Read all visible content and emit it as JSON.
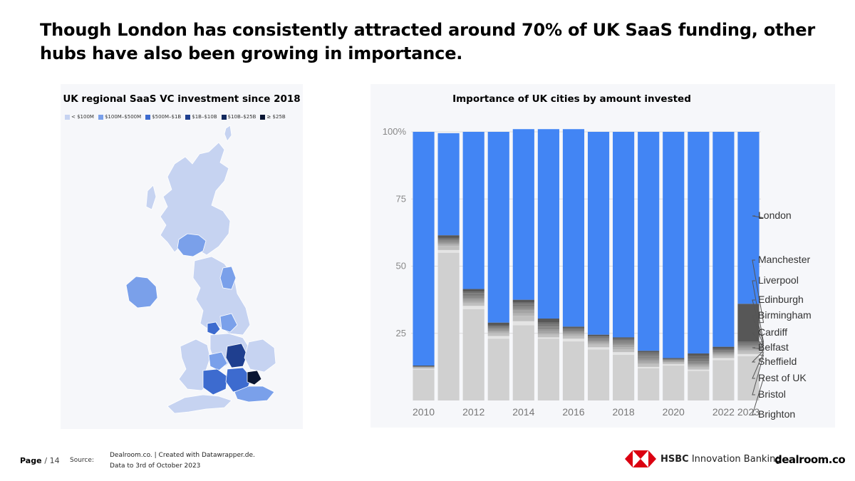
{
  "headline": "Though London has consistently attracted around 70% of UK SaaS funding, other hubs have also been growing in importance.",
  "map": {
    "title": "UK regional SaaS VC investment since 2018",
    "legend": [
      {
        "label": "< $100M",
        "color": "#c6d3f1"
      },
      {
        "label": "$100M–$500M",
        "color": "#7aa0ea"
      },
      {
        "label": "$500M–$1B",
        "color": "#3d6bcf"
      },
      {
        "label": "$1B–$10B",
        "color": "#1f3f8f"
      },
      {
        "label": "$10B–$25B",
        "color": "#132a5e"
      },
      {
        "label": "≥ $25B",
        "color": "#0a1633"
      }
    ]
  },
  "chart_data": {
    "type": "bar",
    "stacked": true,
    "title": "Importance of UK cities by amount invested",
    "x": [
      2010,
      2011,
      2012,
      2013,
      2014,
      2015,
      2016,
      2017,
      2018,
      2019,
      2020,
      2021,
      2022,
      2023
    ],
    "x_tick_labels": [
      "2010",
      "",
      "2012",
      "",
      "2014",
      "",
      "2016",
      "",
      "2018",
      "",
      "2020",
      "",
      "2022",
      "2023"
    ],
    "ylim": [
      0,
      100
    ],
    "y_ticks": [
      25,
      50,
      75,
      100
    ],
    "y_tick_labels": [
      "25",
      "50",
      "75",
      "100%"
    ],
    "series": [
      {
        "name": "Brighton",
        "color": "#d0d0d0",
        "values": [
          11.5,
          55,
          34,
          23,
          28,
          23,
          22,
          19,
          17,
          12,
          13,
          11,
          15,
          16.5
        ]
      },
      {
        "name": "Bristol",
        "color": "#e4e4e4",
        "values": [
          0.3,
          1,
          1.2,
          1,
          1.5,
          0.5,
          1,
          0.8,
          1,
          0.5,
          0.5,
          0.5,
          0.8,
          0.8
        ]
      },
      {
        "name": "Rest of UK",
        "color": "#c0c0c0",
        "values": [
          0.3,
          1.5,
          1,
          1,
          2,
          1,
          1,
          1,
          1,
          1,
          0.5,
          0.8,
          0.8,
          1
        ]
      },
      {
        "name": "Sheffield",
        "color": "#b2b2b2",
        "values": [
          0.1,
          0.5,
          0.5,
          0.5,
          1,
          0.5,
          0.5,
          0.5,
          0.8,
          0.5,
          0.3,
          0.5,
          0.5,
          0.5
        ]
      },
      {
        "name": "Belfast",
        "color": "#a4a4a4",
        "values": [
          0.1,
          0.5,
          0.8,
          0.5,
          1,
          0.8,
          0.5,
          0.5,
          0.7,
          0.8,
          0.3,
          0.5,
          0.4,
          0.6
        ]
      },
      {
        "name": "Cardiff",
        "color": "#969696",
        "values": [
          0.1,
          0.5,
          0.5,
          0.5,
          0.5,
          0.7,
          0.5,
          0.5,
          0.5,
          0.7,
          0.2,
          0.5,
          0.3,
          0.6
        ]
      },
      {
        "name": "Birmingham",
        "color": "#888888",
        "values": [
          0.1,
          0.5,
          1,
          0.5,
          1,
          1,
          0.5,
          0.7,
          0.8,
          1,
          0.3,
          0.7,
          0.5,
          0.7
        ]
      },
      {
        "name": "Edinburgh",
        "color": "#7a7a7a",
        "values": [
          0.1,
          0.5,
          1,
          0.5,
          1,
          1,
          0.5,
          0.7,
          0.7,
          1,
          0.2,
          1,
          0.5,
          0.8
        ]
      },
      {
        "name": "Liverpool",
        "color": "#6a6a6a",
        "values": [
          0.1,
          0.5,
          0.5,
          0.5,
          0.5,
          0.5,
          0.5,
          0.3,
          0.5,
          0.5,
          0.2,
          1,
          0.4,
          0.5
        ]
      },
      {
        "name": "Manchester",
        "color": "#575757",
        "values": [
          0.3,
          1,
          1,
          1,
          1,
          1.5,
          0.5,
          0.5,
          0.5,
          0.5,
          0.3,
          1,
          0.8,
          14
        ]
      },
      {
        "name": "London",
        "color": "#4285f4",
        "values": [
          87,
          38,
          58.5,
          71,
          63.5,
          70.5,
          73.5,
          75.5,
          76.5,
          81.5,
          84.2,
          82.5,
          80,
          64
        ]
      }
    ],
    "legend_labels": [
      "London",
      "Manchester",
      "Liverpool",
      "Edinburgh",
      "Birmingham",
      "Cardiff",
      "Belfast",
      "Sheffield",
      "Rest of UK",
      "Bristol",
      "Brighton"
    ],
    "legend_placement": "right, direct labels"
  },
  "footer": {
    "page_label": "Page",
    "page_number": "/ 14",
    "source_label": "Source:",
    "source_line1": "Dealroom.co. | Created with Datawrapper.de.",
    "source_line2": "Data to 3rd of October 2023",
    "hsbc_bold": "HSBC",
    "hsbc_rest": "Innovation Banking",
    "dealroom": "dealroom.co"
  }
}
